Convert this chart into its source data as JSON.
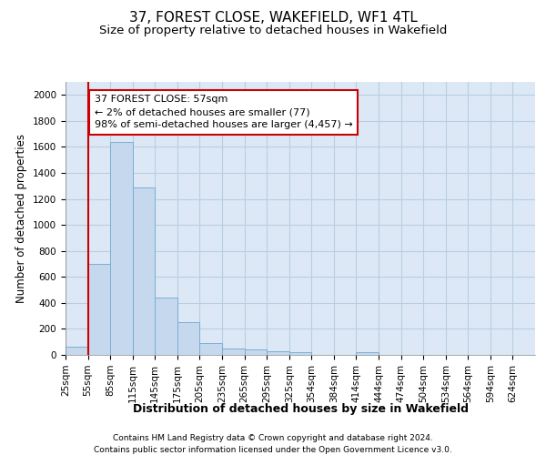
{
  "title": "37, FOREST CLOSE, WAKEFIELD, WF1 4TL",
  "subtitle": "Size of property relative to detached houses in Wakefield",
  "xlabel": "Distribution of detached houses by size in Wakefield",
  "ylabel": "Number of detached properties",
  "footer_line1": "Contains HM Land Registry data © Crown copyright and database right 2024.",
  "footer_line2": "Contains public sector information licensed under the Open Government Licence v3.0.",
  "bin_labels": [
    "25sqm",
    "55sqm",
    "85sqm",
    "115sqm",
    "145sqm",
    "175sqm",
    "205sqm",
    "235sqm",
    "265sqm",
    "295sqm",
    "325sqm",
    "354sqm",
    "384sqm",
    "414sqm",
    "444sqm",
    "474sqm",
    "504sqm",
    "534sqm",
    "564sqm",
    "594sqm",
    "624sqm"
  ],
  "bar_values": [
    65,
    700,
    1635,
    1285,
    440,
    255,
    88,
    52,
    40,
    28,
    20,
    0,
    0,
    18,
    0,
    0,
    0,
    0,
    0,
    0,
    0
  ],
  "bar_color": "#c5d8ee",
  "bar_edgecolor": "#7aafd4",
  "vline_color": "#cc0000",
  "annotation_line1": "37 FOREST CLOSE: 57sqm",
  "annotation_line2": "← 2% of detached houses are smaller (77)",
  "annotation_line3": "98% of semi-detached houses are larger (4,457) →",
  "annotation_box_color": "#cc0000",
  "ylim": [
    0,
    2100
  ],
  "yticks": [
    0,
    200,
    400,
    600,
    800,
    1000,
    1200,
    1400,
    1600,
    1800,
    2000
  ],
  "ax_facecolor": "#dce8f5",
  "background_color": "#ffffff",
  "grid_color": "#b8cfe0",
  "title_fontsize": 11,
  "subtitle_fontsize": 9.5,
  "xlabel_fontsize": 9,
  "ylabel_fontsize": 8.5,
  "tick_fontsize": 7.5,
  "annotation_fontsize": 8
}
